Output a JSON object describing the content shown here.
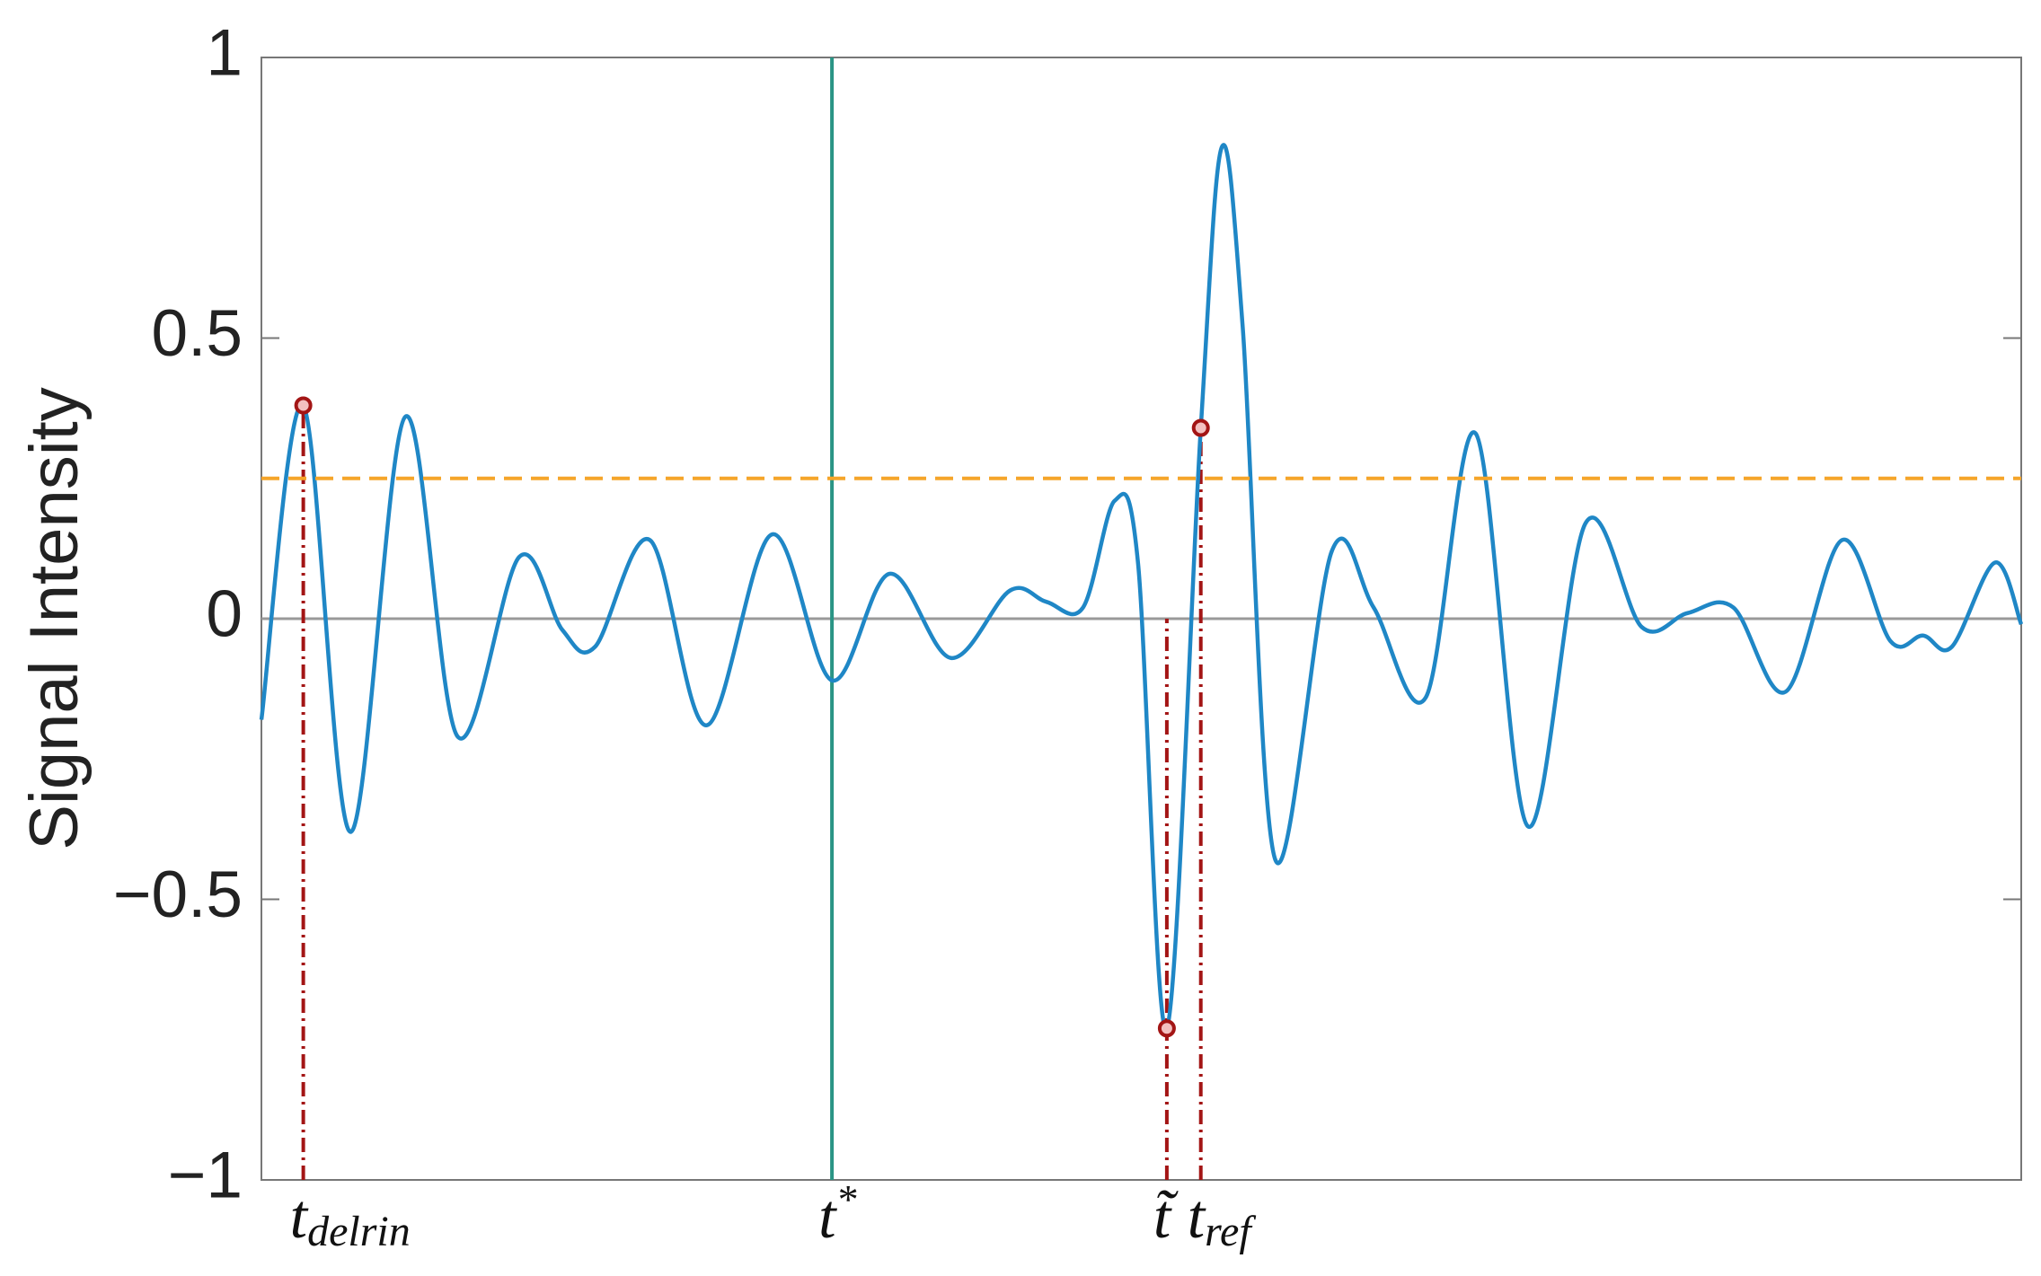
{
  "chart_data": {
    "type": "line",
    "y_label": "Signal Intensity",
    "ylim": [
      -1,
      1
    ],
    "yticks": [
      {
        "value": -1,
        "label": "−1"
      },
      {
        "value": -0.5,
        "label": "−0.5"
      },
      0,
      0.5,
      1
    ],
    "xlim": [
      0,
      100
    ],
    "series": [
      {
        "color": "#1f87c6",
        "x": [
          0,
          2.38,
          5.06,
          8.18,
          11.15,
          14.65,
          17.1,
          18.96,
          22.08,
          25.28,
          29.0,
          32.42,
          35.69,
          39.18,
          42.53,
          44.61,
          46.69,
          48.48,
          49.81,
          51.45,
          53.38,
          54.57,
          55.76,
          57.62,
          60.82,
          63.2,
          66.17,
          69.0,
          71.97,
          75.24,
          78.44,
          81.04,
          83.64,
          86.62,
          89.81,
          92.57,
          94.42,
          96.06,
          98.51,
          100
        ],
        "values": [
          -0.18,
          0.38,
          -0.38,
          0.36,
          -0.21,
          0.11,
          -0.02,
          -0.05,
          0.14,
          -0.19,
          0.15,
          -0.11,
          0.08,
          -0.07,
          0.05,
          0.03,
          0.02,
          0.21,
          0.1,
          -0.73,
          0.34,
          0.84,
          0.52,
          -0.43,
          0.12,
          0.02,
          -0.14,
          0.33,
          -0.37,
          0.17,
          -0.015,
          0.01,
          0.02,
          -0.13,
          0.14,
          -0.04,
          -0.03,
          -0.05,
          0.1,
          -0.01
        ]
      }
    ],
    "threshold": {
      "value": 0.25,
      "color": "#f5a52a"
    },
    "t_star": {
      "symbol": "t",
      "sup": "*",
      "x": 32.42,
      "color": "#2a9485"
    },
    "events": [
      {
        "symbol": "t",
        "sub": "delrin",
        "x": 2.38,
        "y": 0.38
      },
      {
        "symbol": "t̃",
        "x": 51.45,
        "y": -0.73
      },
      {
        "symbol": "t",
        "sub": "ref",
        "x": 53.38,
        "y": 0.34
      }
    ],
    "event_color": "#a31515",
    "zero_line": true
  }
}
